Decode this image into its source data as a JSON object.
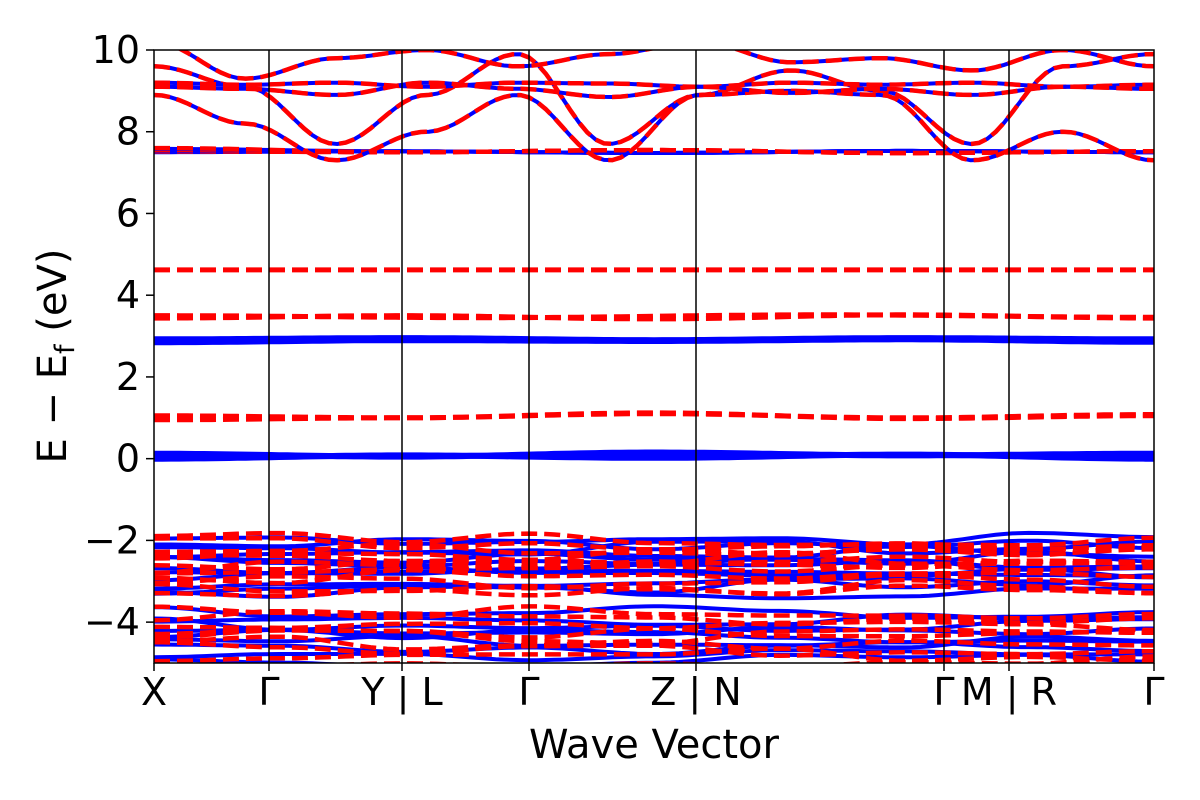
{
  "chart_data": {
    "type": "line",
    "title": "",
    "xlabel": "Wave Vector",
    "ylabel": "E − E_f (eV)",
    "ylabel_parts": {
      "main": "E − E",
      "sub": "f",
      "unit": "(eV)"
    },
    "xlim": [
      0,
      10
    ],
    "ylim": [
      -5,
      10
    ],
    "yticks": [
      -4,
      -2,
      0,
      2,
      4,
      6,
      8,
      10
    ],
    "ytick_labels": [
      "−4",
      "−2",
      "0",
      "2",
      "4",
      "6",
      "8",
      "10"
    ],
    "kpath_positions": [
      0,
      1.15,
      2.48,
      3.75,
      5.42,
      7.9,
      8.55,
      10
    ],
    "kpath_labels": [
      "X",
      "Γ",
      "Y | L",
      "Γ",
      "Z | N",
      "Γ",
      "M | R",
      "Γ"
    ],
    "grid": false,
    "colors": {
      "spin_up": "#0000ff",
      "spin_down": "#ff0000"
    },
    "series": [
      {
        "color": "#ff0000",
        "style": "dashed",
        "bands": [
          [
            4.62
          ],
          [
            3.44,
            3.5,
            3.42,
            3.52,
            3.44
          ],
          [
            3.5,
            3.45,
            3.52,
            3.46
          ],
          [
            1.05,
            1.0,
            1.1,
            1.0,
            1.08
          ],
          [
            0.95,
            1.0,
            1.12,
            0.98,
            1.05
          ]
        ]
      },
      {
        "color": "#0000ff",
        "style": "solid",
        "bands": [
          [
            2.92,
            2.95,
            2.9,
            2.95,
            2.92
          ],
          [
            2.85,
            2.9,
            2.88,
            2.92,
            2.86
          ],
          [
            0.12,
            0.05,
            0.15,
            0.08,
            0.12
          ],
          [
            0.0,
            0.08,
            0.02,
            0.1,
            0.0
          ]
        ]
      }
    ]
  }
}
